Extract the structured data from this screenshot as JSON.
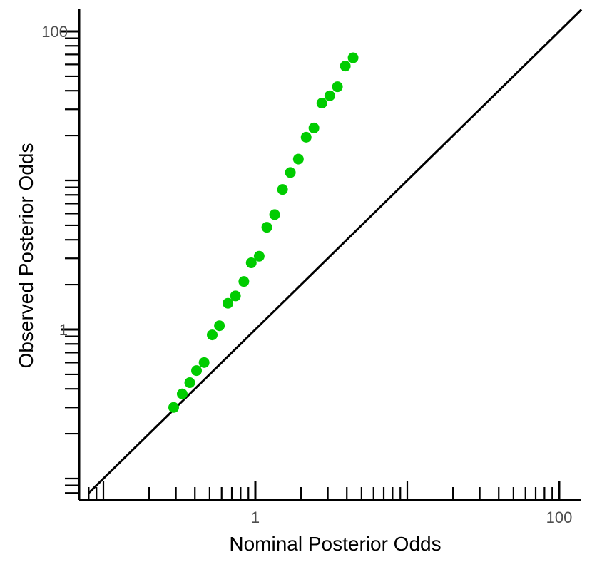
{
  "chart_data": {
    "type": "scatter",
    "title": "",
    "xlabel": "Nominal Posterior Odds",
    "ylabel": "Observed Posterior Odds",
    "x_scale": "log10",
    "y_scale": "log10",
    "xlim": [
      0.08,
      140
    ],
    "ylim": [
      0.07,
      140
    ],
    "x_tick_labels": [
      "1",
      "100"
    ],
    "y_tick_labels": [
      "1",
      "100"
    ],
    "grid": false,
    "legend": "none",
    "point_color": "#00cc00",
    "reference_line": "y = x",
    "points": [
      {
        "x": 0.29,
        "y": 0.3
      },
      {
        "x": 0.33,
        "y": 0.37
      },
      {
        "x": 0.37,
        "y": 0.44
      },
      {
        "x": 0.41,
        "y": 0.53
      },
      {
        "x": 0.46,
        "y": 0.6
      },
      {
        "x": 0.52,
        "y": 0.92
      },
      {
        "x": 0.58,
        "y": 1.06
      },
      {
        "x": 0.66,
        "y": 1.5
      },
      {
        "x": 0.74,
        "y": 1.68
      },
      {
        "x": 0.84,
        "y": 2.1
      },
      {
        "x": 0.94,
        "y": 2.8
      },
      {
        "x": 1.06,
        "y": 3.1
      },
      {
        "x": 1.19,
        "y": 4.85
      },
      {
        "x": 1.34,
        "y": 5.9
      },
      {
        "x": 1.51,
        "y": 8.7
      },
      {
        "x": 1.7,
        "y": 11.3
      },
      {
        "x": 1.92,
        "y": 13.9
      },
      {
        "x": 2.16,
        "y": 19.5
      },
      {
        "x": 2.43,
        "y": 22.5
      },
      {
        "x": 2.74,
        "y": 33.0
      },
      {
        "x": 3.09,
        "y": 37.0
      },
      {
        "x": 3.47,
        "y": 42.5
      },
      {
        "x": 3.91,
        "y": 58.5
      },
      {
        "x": 4.4,
        "y": 66.5
      }
    ]
  }
}
